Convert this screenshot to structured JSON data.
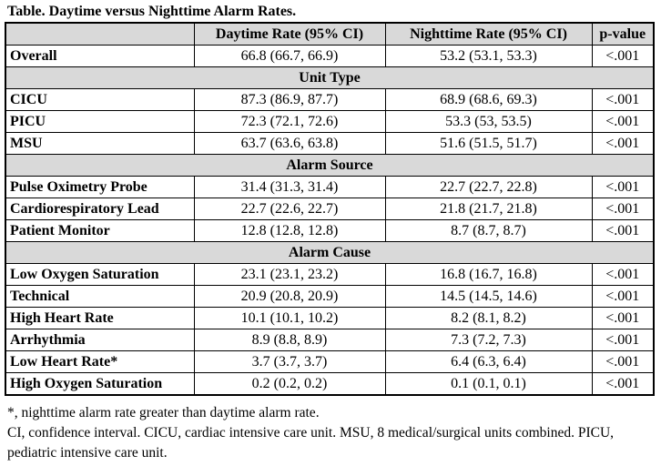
{
  "caption": "Table. Daytime versus Nighttime Alarm Rates.",
  "headers": [
    "",
    "Daytime Rate (95% CI)",
    "Nighttime Rate (95% CI)",
    "p-value"
  ],
  "rows": [
    {
      "type": "data",
      "label": "Overall",
      "day": "66.8 (66.7, 66.9)",
      "night": "53.2 (53.1, 53.3)",
      "p": "<.001"
    },
    {
      "type": "section",
      "label": "Unit Type"
    },
    {
      "type": "data",
      "label": "CICU",
      "day": "87.3 (86.9, 87.7)",
      "night": "68.9 (68.6, 69.3)",
      "p": "<.001"
    },
    {
      "type": "data",
      "label": "PICU",
      "day": "72.3 (72.1, 72.6)",
      "night": "53.3 (53, 53.5)",
      "p": "<.001"
    },
    {
      "type": "data",
      "label": "MSU",
      "day": "63.7 (63.6, 63.8)",
      "night": "51.6 (51.5, 51.7)",
      "p": "<.001"
    },
    {
      "type": "section",
      "label": "Alarm Source"
    },
    {
      "type": "data",
      "label": "Pulse Oximetry Probe",
      "day": "31.4 (31.3, 31.4)",
      "night": "22.7 (22.7, 22.8)",
      "p": "<.001"
    },
    {
      "type": "data",
      "label": "Cardiorespiratory Lead",
      "day": "22.7 (22.6, 22.7)",
      "night": "21.8 (21.7, 21.8)",
      "p": "<.001"
    },
    {
      "type": "data",
      "label": "Patient Monitor",
      "day": "12.8 (12.8, 12.8)",
      "night": "8.7 (8.7, 8.7)",
      "p": "<.001"
    },
    {
      "type": "section",
      "label": "Alarm Cause"
    },
    {
      "type": "data",
      "label": "Low Oxygen Saturation",
      "day": "23.1 (23.1, 23.2)",
      "night": "16.8 (16.7, 16.8)",
      "p": "<.001"
    },
    {
      "type": "data",
      "label": "Technical",
      "day": "20.9 (20.8, 20.9)",
      "night": "14.5 (14.5, 14.6)",
      "p": "<.001"
    },
    {
      "type": "data",
      "label": "High Heart Rate",
      "day": "10.1 (10.1, 10.2)",
      "night": "8.2 (8.1, 8.2)",
      "p": "<.001"
    },
    {
      "type": "data",
      "label": "Arrhythmia",
      "day": "8.9 (8.8, 8.9)",
      "night": "7.3 (7.2, 7.3)",
      "p": "<.001"
    },
    {
      "type": "data",
      "label": "Low Heart Rate*",
      "day": "3.7 (3.7, 3.7)",
      "night": "6.4 (6.3, 6.4)",
      "p": "<.001"
    },
    {
      "type": "data",
      "label": "High Oxygen Saturation",
      "day": "0.2 (0.2, 0.2)",
      "night": "0.1 (0.1, 0.1)",
      "p": "<.001"
    }
  ],
  "notes": [
    "*, nighttime alarm rate greater than daytime alarm rate.",
    "CI, confidence interval. CICU, cardiac intensive care unit. MSU, 8 medical/surgical units combined. PICU, pediatric intensive care unit."
  ]
}
